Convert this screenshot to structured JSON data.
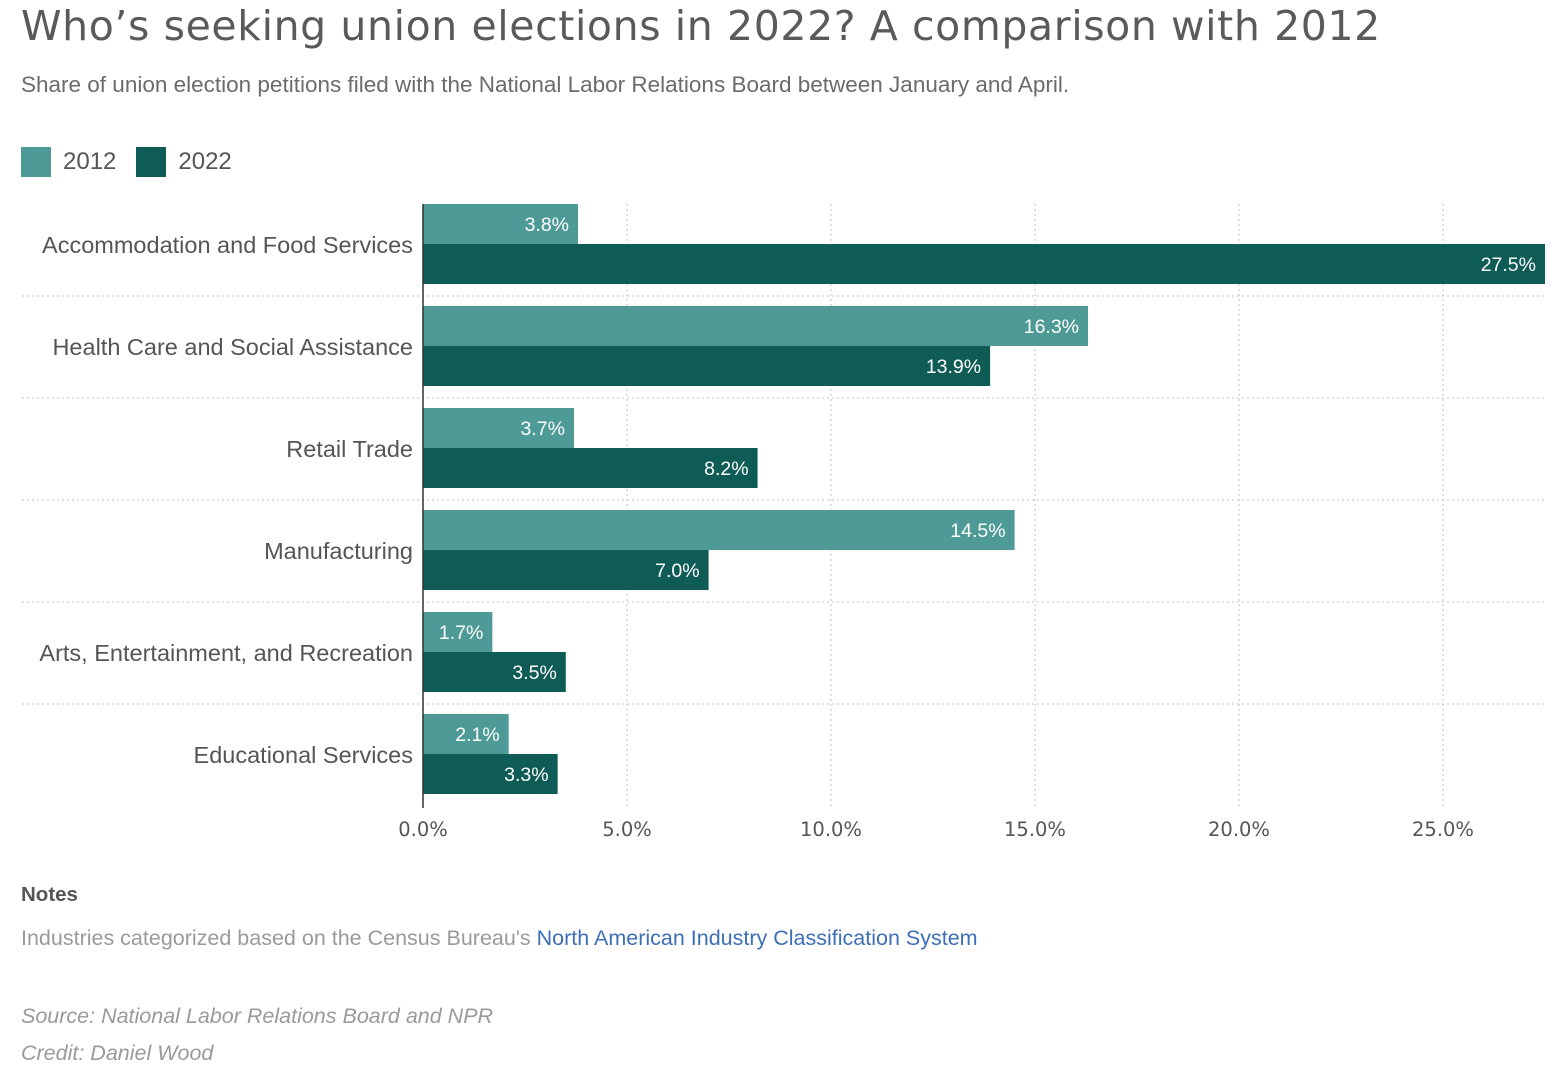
{
  "title": "Who’s seeking union elections in 2022? A comparison with 2012",
  "subtitle": "Share of union election petitions filed with the National Labor Relations Board between January and April.",
  "colors": {
    "s2012": "#4d9a96",
    "s2022": "#0f5b55",
    "grid": "#cccccc",
    "axis": "#333333"
  },
  "chart_data": {
    "type": "bar",
    "orientation": "horizontal",
    "categories": [
      "Accommodation and Food Services",
      "Health Care and Social Assistance",
      "Retail Trade",
      "Manufacturing",
      "Arts, Entertainment, and Recreation",
      "Educational Services"
    ],
    "series": [
      {
        "name": "2012",
        "values": [
          3.8,
          16.3,
          3.7,
          14.5,
          1.7,
          2.1
        ],
        "labels": [
          "3.8%",
          "16.3%",
          "3.7%",
          "14.5%",
          "1.7%",
          "2.1%"
        ]
      },
      {
        "name": "2022",
        "values": [
          27.5,
          13.9,
          8.2,
          7.0,
          3.5,
          3.3
        ],
        "labels": [
          "27.5%",
          "13.9%",
          "8.2%",
          "7.0%",
          "3.5%",
          "3.3%"
        ]
      }
    ],
    "xlim": [
      0,
      27.5
    ],
    "xticks": [
      0,
      5,
      10,
      15,
      20,
      25
    ],
    "xtick_labels": [
      "0.0%",
      "5.0%",
      "10.0%",
      "15.0%",
      "20.0%",
      "25.0%"
    ],
    "grid": true,
    "legend_position": "top-left"
  },
  "notes": {
    "heading": "Notes",
    "text": "Industries categorized based on the Census Bureau's ",
    "link_text": "North American Industry Classification System"
  },
  "source": "Source: National Labor Relations Board and NPR",
  "credit": "Credit: Daniel Wood"
}
